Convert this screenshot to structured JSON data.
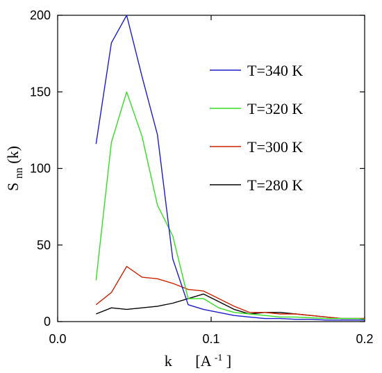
{
  "chart_data": {
    "type": "line",
    "xlabel": {
      "main": "k",
      "unit_prefix": "[A",
      "unit_sup": "-1",
      "unit_suffix": "]"
    },
    "ylabel": {
      "main": "S",
      "sub": "nn",
      "suffix": "(k)"
    },
    "xlim": [
      0.0,
      0.2
    ],
    "ylim": [
      0,
      200
    ],
    "xticks": [
      0.0,
      0.1,
      0.2
    ],
    "xtick_labels": [
      "0.0",
      "0.1",
      "0.2"
    ],
    "yticks": [
      0,
      50,
      100,
      150,
      200
    ],
    "ytick_labels": [
      "0",
      "50",
      "100",
      "150",
      "200"
    ],
    "grid": false,
    "legend_position": "right",
    "series": [
      {
        "name": "T=340 K",
        "color": "#1a1acc",
        "x": [
          0.025,
          0.035,
          0.045,
          0.055,
          0.065,
          0.075,
          0.085,
          0.095,
          0.105,
          0.115,
          0.125,
          0.135,
          0.145,
          0.155,
          0.165,
          0.175,
          0.185,
          0.195,
          0.2
        ],
        "y": [
          116,
          182,
          200,
          160,
          122,
          41,
          11,
          8,
          6,
          4,
          3,
          2,
          2,
          1.5,
          1.5,
          1,
          1,
          1,
          1
        ]
      },
      {
        "name": "T=320 K",
        "color": "#33dd22",
        "x": [
          0.025,
          0.035,
          0.045,
          0.055,
          0.065,
          0.075,
          0.085,
          0.095,
          0.105,
          0.115,
          0.125,
          0.135,
          0.145,
          0.155,
          0.165,
          0.175,
          0.185,
          0.195,
          0.2
        ],
        "y": [
          27,
          117,
          150,
          121,
          76,
          56,
          15,
          15,
          9,
          6,
          5,
          4,
          3,
          3,
          2.5,
          2,
          2,
          2,
          1.5
        ]
      },
      {
        "name": "T=300 K",
        "color": "#cc2200",
        "x": [
          0.025,
          0.035,
          0.045,
          0.055,
          0.065,
          0.075,
          0.085,
          0.095,
          0.105,
          0.115,
          0.125,
          0.135,
          0.145,
          0.155,
          0.165,
          0.175,
          0.185,
          0.195,
          0.2
        ],
        "y": [
          11,
          19,
          36,
          29,
          28,
          25,
          21,
          20,
          15,
          10,
          6,
          6,
          5,
          5,
          4,
          3,
          2,
          2,
          2
        ]
      },
      {
        "name": "T=280 K",
        "color": "#000000",
        "x": [
          0.025,
          0.035,
          0.045,
          0.055,
          0.065,
          0.075,
          0.085,
          0.095,
          0.105,
          0.115,
          0.125,
          0.135,
          0.145,
          0.155,
          0.165,
          0.175,
          0.185,
          0.195,
          0.2
        ],
        "y": [
          5,
          9,
          8,
          9,
          10,
          12,
          15,
          18,
          13,
          8,
          5,
          6,
          6,
          5,
          4,
          3,
          2,
          2,
          2
        ]
      }
    ]
  }
}
